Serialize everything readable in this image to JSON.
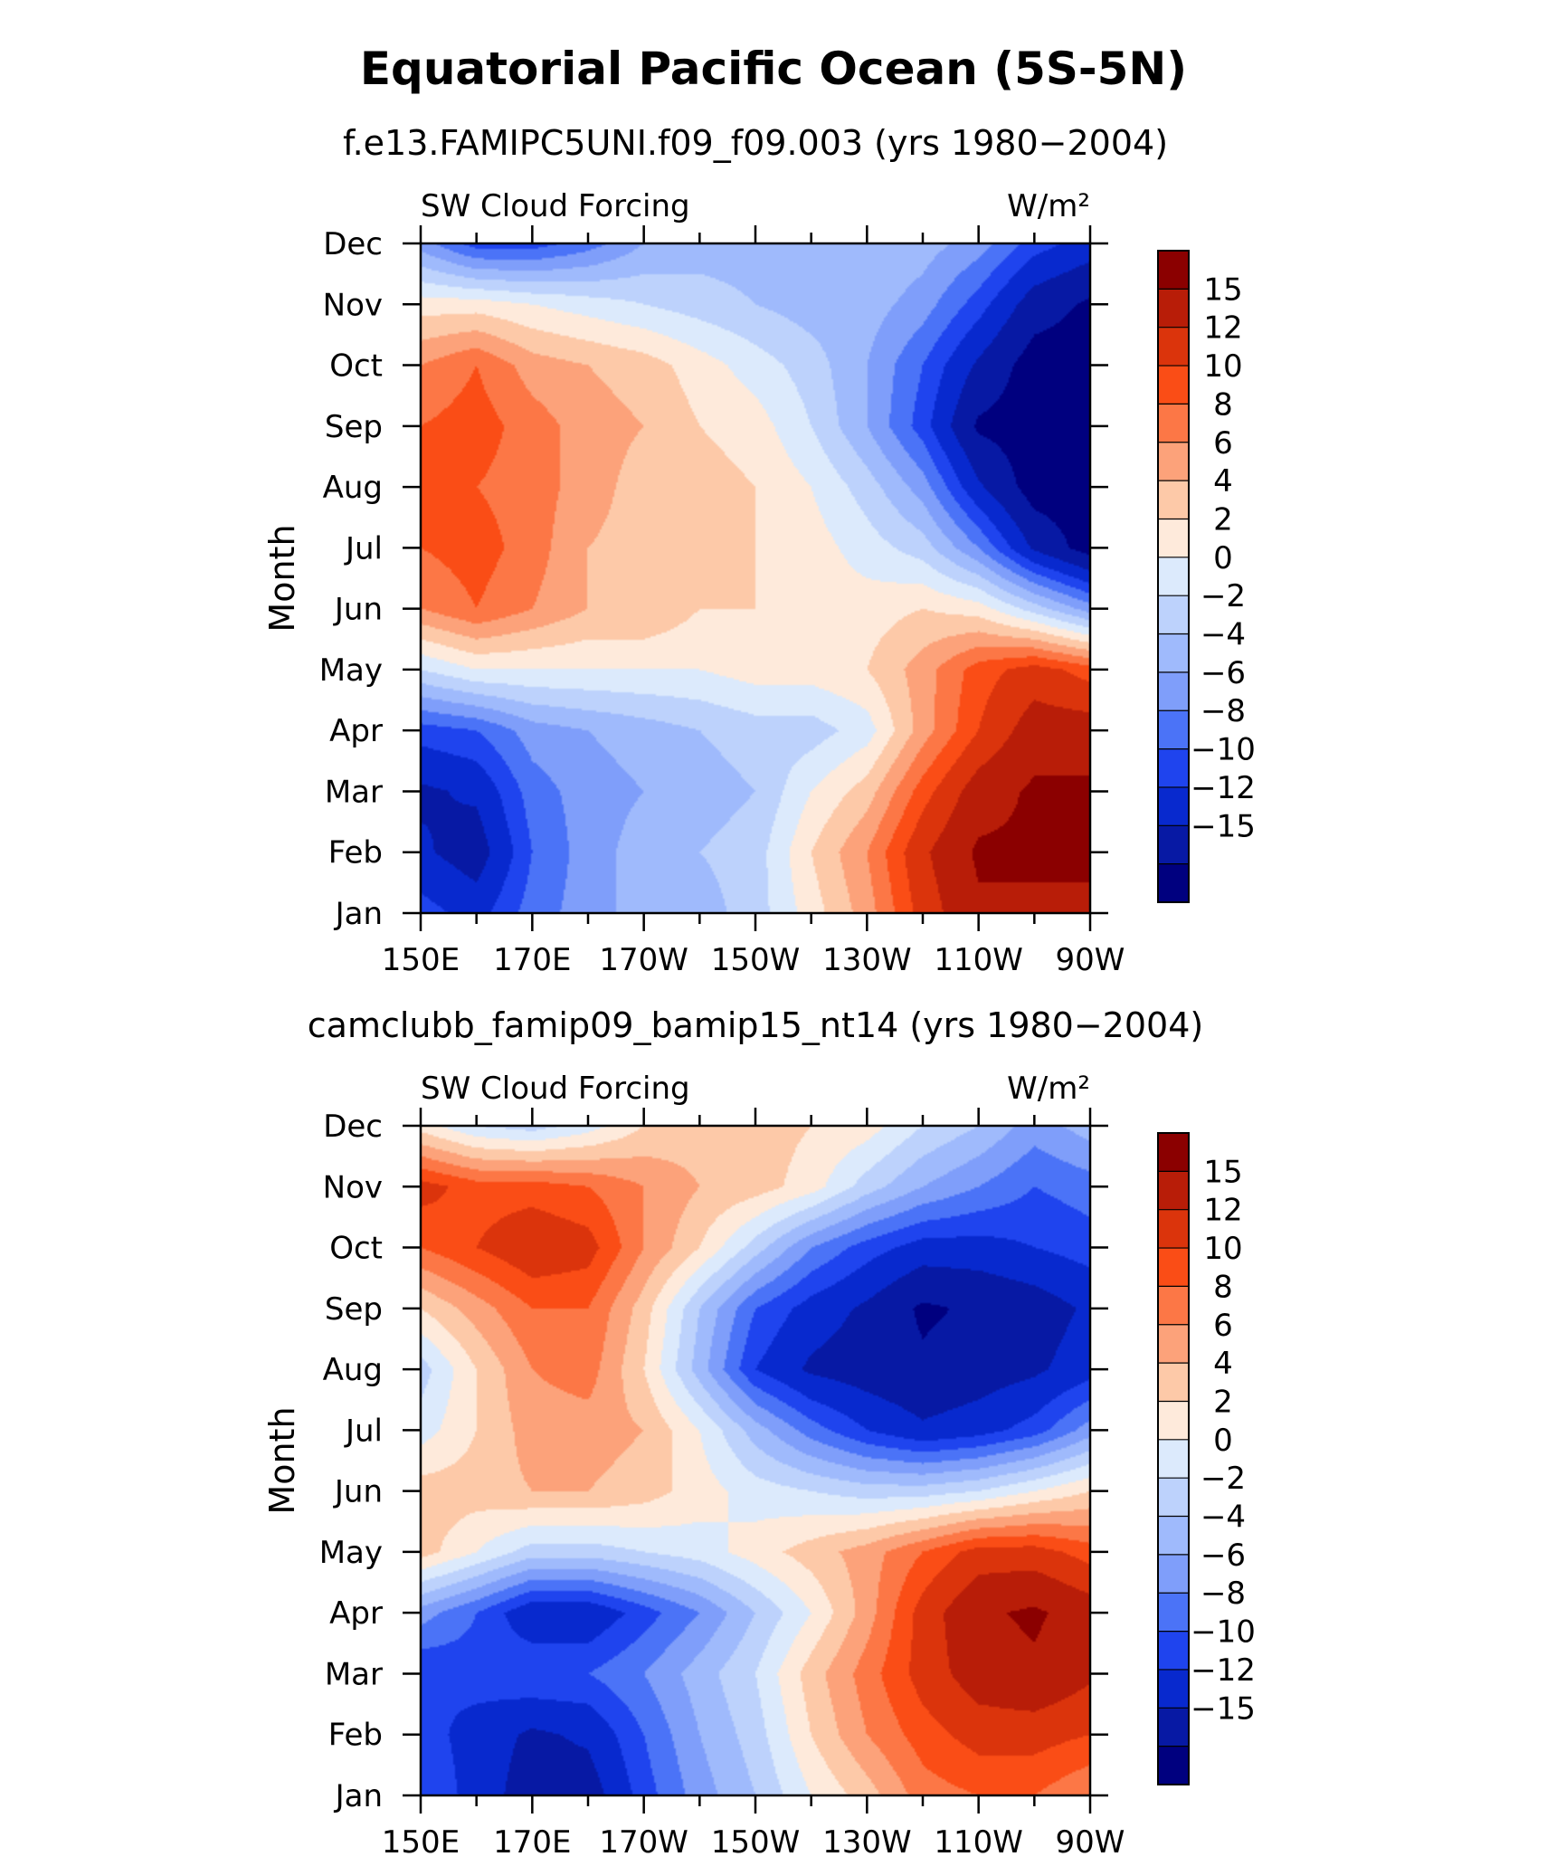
{
  "figure": {
    "title": "Equatorial Pacific Ocean (5S-5N)"
  },
  "chart_data": [
    {
      "type": "heatmap",
      "title": "f.e13.FAMIPC5UNI.f09_f09.003 (yrs 1980−2004)",
      "left_label": "SW Cloud Forcing",
      "right_label": "W/m²",
      "ylabel": "Month",
      "xlabel": "",
      "x_ticks": [
        "150E",
        "170E",
        "170W",
        "150W",
        "130W",
        "110W",
        "90W"
      ],
      "y_ticks": [
        "Jan",
        "Feb",
        "Mar",
        "Apr",
        "May",
        "Jun",
        "Jul",
        "Aug",
        "Sep",
        "Oct",
        "Nov",
        "Dec"
      ],
      "x": [
        150,
        160,
        170,
        180,
        190,
        200,
        210,
        220,
        230,
        240,
        250,
        260,
        270
      ],
      "y": [
        "Jan",
        "Feb",
        "Mar",
        "Apr",
        "May",
        "Jun",
        "Jul",
        "Aug",
        "Sep",
        "Oct",
        "Nov",
        "Dec"
      ],
      "z": [
        [
          -10,
          -12,
          -8,
          -6,
          -4,
          -4,
          -2,
          2,
          6,
          12,
          16,
          16,
          16
        ],
        [
          -13,
          -15,
          -9,
          -6,
          -4,
          -3,
          -2,
          3,
          7,
          13,
          17,
          17,
          17
        ],
        [
          -14,
          -13,
          -8,
          -6,
          -5,
          -4,
          -3,
          1,
          4,
          10,
          15,
          17,
          17
        ],
        [
          -10,
          -9,
          -6,
          -5,
          -4,
          -3,
          -2,
          -2,
          0,
          6,
          11,
          15,
          15
        ],
        [
          -1,
          1,
          1,
          1,
          1,
          1,
          2,
          2,
          3,
          6,
          10,
          12,
          10
        ],
        [
          7,
          9,
          7,
          5,
          5,
          3,
          3,
          2,
          2,
          3,
          2,
          -2,
          -6
        ],
        [
          9,
          10,
          8,
          5,
          4,
          4,
          3,
          2,
          0,
          -2,
          -7,
          -14,
          -18
        ],
        [
          11,
          9,
          8,
          6,
          4,
          4,
          3,
          1,
          -2,
          -6,
          -13,
          -18,
          -18
        ],
        [
          9,
          10,
          8,
          6,
          5,
          3,
          2,
          -1,
          -5,
          -10,
          -17,
          -18,
          -18
        ],
        [
          7,
          9,
          6,
          5,
          4,
          2,
          0,
          -2,
          -5,
          -9,
          -14,
          -18,
          -18
        ],
        [
          2,
          2,
          1,
          0,
          -1,
          -2,
          -3,
          -4,
          -4,
          -6,
          -10,
          -15,
          -17
        ],
        [
          -6,
          -10,
          -10,
          -8,
          -5,
          -4,
          -4,
          -4,
          -3,
          -4,
          -6,
          -10,
          -12
        ]
      ],
      "zlim": [
        -18,
        18
      ],
      "colorbar": {
        "labels": [
          "15",
          "12",
          "10",
          "8",
          "6",
          "4",
          "2",
          "0",
          "−2",
          "−4",
          "−6",
          "−8",
          "−10",
          "−12",
          "−15"
        ],
        "colors": [
          "#8b0000",
          "#b81d08",
          "#db340c",
          "#fa4d16",
          "#fc7746",
          "#fca27a",
          "#fdc9a8",
          "#feeadb",
          "#dceafc",
          "#bdd2fc",
          "#9fbafc",
          "#7f9efa",
          "#4b73f7",
          "#1f44ee",
          "#0829ce",
          "#0719a4",
          "#00007f"
        ]
      }
    },
    {
      "type": "heatmap",
      "title": "camclubb_famip09_bamip15_nt14 (yrs 1980−2004)",
      "left_label": "SW Cloud Forcing",
      "right_label": "W/m²",
      "ylabel": "Month",
      "xlabel": "",
      "x_ticks": [
        "150E",
        "170E",
        "170W",
        "150W",
        "130W",
        "110W",
        "90W"
      ],
      "y_ticks": [
        "Jan",
        "Feb",
        "Mar",
        "Apr",
        "May",
        "Jun",
        "Jul",
        "Aug",
        "Sep",
        "Oct",
        "Nov",
        "Dec"
      ],
      "x": [
        150,
        160,
        170,
        180,
        190,
        200,
        210,
        220,
        230,
        240,
        250,
        260,
        270
      ],
      "y": [
        "Jan",
        "Feb",
        "Mar",
        "Apr",
        "May",
        "Jun",
        "Jul",
        "Aug",
        "Sep",
        "Oct",
        "Nov",
        "Dec"
      ],
      "z": [
        [
          -9,
          -12,
          -15,
          -15,
          -10,
          -6,
          -3,
          1,
          4,
          8,
          9,
          9,
          7
        ],
        [
          -10,
          -12,
          -14,
          -13,
          -9,
          -5,
          -2,
          3,
          7,
          10,
          12,
          12,
          11
        ],
        [
          -11,
          -10,
          -9,
          -9,
          -7,
          -4,
          -1,
          4,
          8,
          12,
          15,
          16,
          14
        ],
        [
          -6,
          -9,
          -13,
          -13,
          -10,
          -7,
          -3,
          1,
          6,
          12,
          16,
          17,
          15
        ],
        [
          4,
          1,
          -2,
          -2,
          -1,
          0,
          2,
          4,
          6,
          9,
          12,
          12,
          10
        ],
        [
          4,
          4,
          5,
          5,
          4,
          2,
          0,
          -1,
          -2,
          -2,
          -1,
          1,
          3
        ],
        [
          0,
          3,
          6,
          6,
          5,
          1,
          -4,
          -8,
          -11,
          -13,
          -12,
          -10,
          -6
        ],
        [
          -2,
          3,
          7,
          8,
          3,
          -4,
          -11,
          -14,
          -15,
          -16,
          -15,
          -14,
          -12
        ],
        [
          3,
          6,
          9,
          9,
          4,
          -3,
          -9,
          -12,
          -14,
          -17,
          -16,
          -15,
          -13
        ],
        [
          9,
          11,
          13,
          12,
          7,
          3,
          -2,
          -7,
          -10,
          -12,
          -12,
          -11,
          -10
        ],
        [
          12,
          10,
          10,
          9,
          7,
          5,
          4,
          2,
          -2,
          -5,
          -7,
          -9,
          -8
        ],
        [
          2,
          -1,
          -2,
          0,
          3,
          4,
          4,
          3,
          2,
          -1,
          -3,
          -6,
          -4
        ]
      ],
      "zlim": [
        -18,
        18
      ],
      "colorbar": {
        "labels": [
          "15",
          "12",
          "10",
          "8",
          "6",
          "4",
          "2",
          "0",
          "−2",
          "−4",
          "−6",
          "−8",
          "−10",
          "−12",
          "−15"
        ],
        "colors": [
          "#8b0000",
          "#b81d08",
          "#db340c",
          "#fa4d16",
          "#fc7746",
          "#fca27a",
          "#fdc9a8",
          "#feeadb",
          "#dceafc",
          "#bdd2fc",
          "#9fbafc",
          "#7f9efa",
          "#4b73f7",
          "#1f44ee",
          "#0829ce",
          "#0719a4",
          "#00007f"
        ]
      }
    }
  ]
}
